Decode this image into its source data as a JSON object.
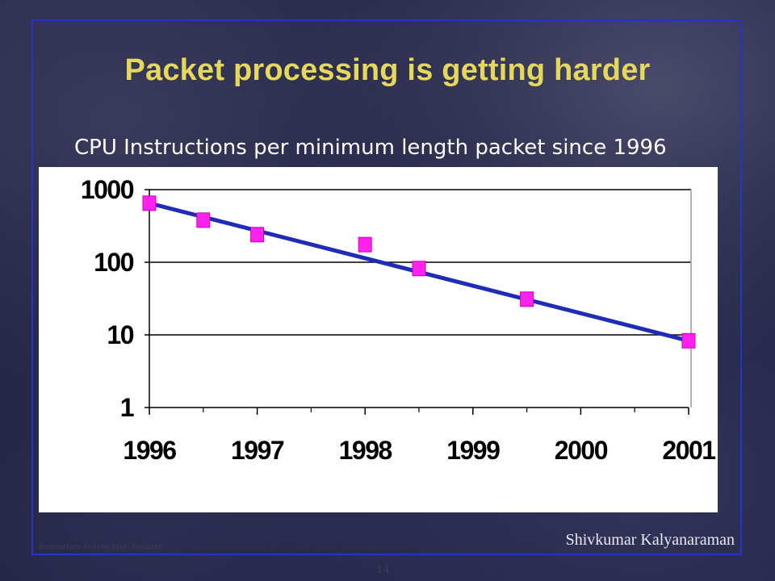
{
  "slide": {
    "title": "Packet processing is getting harder",
    "subtitle": "CPU Instructions per minimum length packet since 1996",
    "footer_left": "Rensselaer Polytechnic Institute",
    "footer_right": "Shivkumar Kalyanaraman",
    "page_number": "14"
  },
  "colors": {
    "title": "#e6d85a",
    "frame": "#2632c8",
    "trend_line": "#1f2cb8",
    "marker": "#ff22ee"
  },
  "chart_data": {
    "type": "scatter",
    "title": "CPU Instructions per minimum length packet since 1996",
    "xlabel": "",
    "ylabel": "",
    "y_scale": "log",
    "xlim": [
      1996,
      2001
    ],
    "ylim": [
      1,
      1000
    ],
    "x_ticks": [
      "1996",
      "1997",
      "1998",
      "1999",
      "2000",
      "2001"
    ],
    "y_ticks": [
      "1",
      "10",
      "100",
      "1000"
    ],
    "grid": "horizontal",
    "series": [
      {
        "points": [
          {
            "x": 1996.0,
            "y": 650
          },
          {
            "x": 1996.5,
            "y": 380
          },
          {
            "x": 1997.0,
            "y": 240
          },
          {
            "x": 1998.0,
            "y": 175
          },
          {
            "x": 1998.5,
            "y": 82
          },
          {
            "x": 1999.5,
            "y": 31
          },
          {
            "x": 2001.0,
            "y": 8.3
          }
        ]
      }
    ],
    "trend_line": {
      "x": [
        1996,
        2001
      ],
      "y": [
        650,
        8.3
      ]
    }
  }
}
